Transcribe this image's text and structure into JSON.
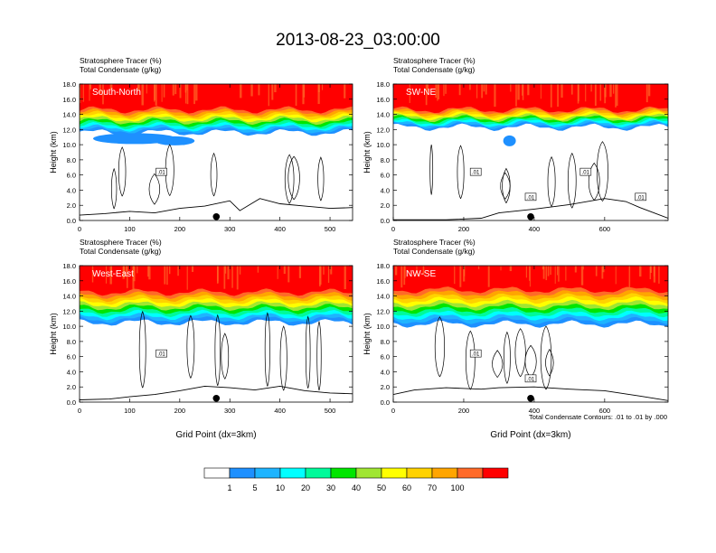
{
  "figure": {
    "title": "2013-08-23_03:00:00",
    "footnote": "Total Condensate Contours: .01 to .01 by .000"
  },
  "colorbar": {
    "colors": [
      "#ffffff",
      "#1e90ff",
      "#1eb4ff",
      "#00ffff",
      "#00fa9a",
      "#00e600",
      "#a0e632",
      "#ffff00",
      "#ffd200",
      "#ffa500",
      "#ff6a28",
      "#ff0000"
    ],
    "labels": [
      "1",
      "5",
      "10",
      "20",
      "30",
      "40",
      "50",
      "60",
      "70",
      "100"
    ]
  },
  "chart_data": [
    {
      "type": "contour",
      "panel_label": "South-North",
      "line1": "Stratosphere Tracer   (%)",
      "line2": "Total Condensate   (g/kg)",
      "ylabel": "Height (km)",
      "xlabel": "",
      "xlim": [
        0,
        545
      ],
      "ylim": [
        0,
        18
      ],
      "xticks": [
        "0",
        "100",
        "200",
        "300",
        "400",
        "500"
      ],
      "yticks": [
        "0.0",
        "2.0",
        "4.0",
        "6.0",
        "8.0",
        "10.0",
        "12.0",
        "14.0",
        "16.0",
        "18.0"
      ],
      "tracer_100_base_km": 14.6,
      "tracer_1_base_km": 11.6,
      "contour_labels": [
        ".01"
      ],
      "marker_x": 273,
      "terrain": [
        [
          0,
          0.7
        ],
        [
          50,
          0.9
        ],
        [
          100,
          1.2
        ],
        [
          150,
          1.0
        ],
        [
          200,
          1.6
        ],
        [
          250,
          1.9
        ],
        [
          300,
          2.6
        ],
        [
          320,
          1.3
        ],
        [
          360,
          2.9
        ],
        [
          400,
          2.2
        ],
        [
          450,
          1.9
        ],
        [
          500,
          1.6
        ],
        [
          545,
          1.7
        ]
      ]
    },
    {
      "type": "contour",
      "panel_label": "SW-NE",
      "line1": "Stratosphere Tracer   (%)",
      "line2": "Total Condensate   (g/kg)",
      "ylabel": "Height (km)",
      "xlabel": "",
      "xlim": [
        0,
        780
      ],
      "ylim": [
        0,
        18
      ],
      "xticks": [
        "0",
        "200",
        "400",
        "600"
      ],
      "yticks": [
        "0.0",
        "2.0",
        "4.0",
        "6.0",
        "8.0",
        "10.0",
        "12.0",
        "14.0",
        "16.0",
        "18.0"
      ],
      "tracer_100_base_km": 14.6,
      "tracer_1_base_km": 12.3,
      "contour_labels": [
        ".01",
        ".01",
        ".01",
        ".01"
      ],
      "marker_x": 390,
      "terrain": [
        [
          0,
          0.1
        ],
        [
          150,
          0.1
        ],
        [
          250,
          0.3
        ],
        [
          300,
          1.0
        ],
        [
          400,
          1.5
        ],
        [
          500,
          2.1
        ],
        [
          600,
          2.9
        ],
        [
          660,
          2.5
        ],
        [
          700,
          1.7
        ],
        [
          780,
          0.3
        ]
      ]
    },
    {
      "type": "contour",
      "panel_label": "West-East",
      "line1": "Stratosphere Tracer   (%)",
      "line2": "Total Condensate   (g/kg)",
      "ylabel": "Height (km)",
      "xlabel": "Grid Point (dx=3km)",
      "xlim": [
        0,
        545
      ],
      "ylim": [
        0,
        18
      ],
      "xticks": [
        "0",
        "100",
        "200",
        "300",
        "400",
        "500"
      ],
      "yticks": [
        "0.0",
        "2.0",
        "4.0",
        "6.0",
        "8.0",
        "10.0",
        "12.0",
        "14.0",
        "16.0",
        "18.0"
      ],
      "tracer_100_base_km": 14.5,
      "tracer_1_base_km": 10.5,
      "contour_labels": [
        ".01"
      ],
      "marker_x": 273,
      "terrain": [
        [
          0,
          0.3
        ],
        [
          60,
          0.4
        ],
        [
          100,
          0.7
        ],
        [
          150,
          1.0
        ],
        [
          200,
          1.5
        ],
        [
          250,
          2.1
        ],
        [
          300,
          1.9
        ],
        [
          350,
          1.6
        ],
        [
          400,
          2.1
        ],
        [
          450,
          1.5
        ],
        [
          500,
          1.2
        ],
        [
          545,
          1.1
        ]
      ]
    },
    {
      "type": "contour",
      "panel_label": "NW-SE",
      "line1": "Stratosphere Tracer   (%)",
      "line2": "Total Condensate   (g/kg)",
      "ylabel": "Height (km)",
      "xlabel": "Grid Point (dx=3km)",
      "xlim": [
        0,
        780
      ],
      "ylim": [
        0,
        18
      ],
      "xticks": [
        "0",
        "200",
        "400",
        "600"
      ],
      "yticks": [
        "0.0",
        "2.0",
        "4.0",
        "6.0",
        "8.0",
        "10.0",
        "12.0",
        "14.0",
        "16.0",
        "18.0"
      ],
      "tracer_100_base_km": 14.8,
      "tracer_1_base_km": 10.3,
      "contour_labels": [
        ".01",
        ".01"
      ],
      "marker_x": 390,
      "terrain": [
        [
          0,
          1.0
        ],
        [
          60,
          1.6
        ],
        [
          150,
          1.9
        ],
        [
          250,
          1.7
        ],
        [
          300,
          1.9
        ],
        [
          400,
          2.0
        ],
        [
          500,
          1.7
        ],
        [
          600,
          1.5
        ],
        [
          700,
          0.8
        ],
        [
          780,
          0.2
        ]
      ]
    }
  ]
}
